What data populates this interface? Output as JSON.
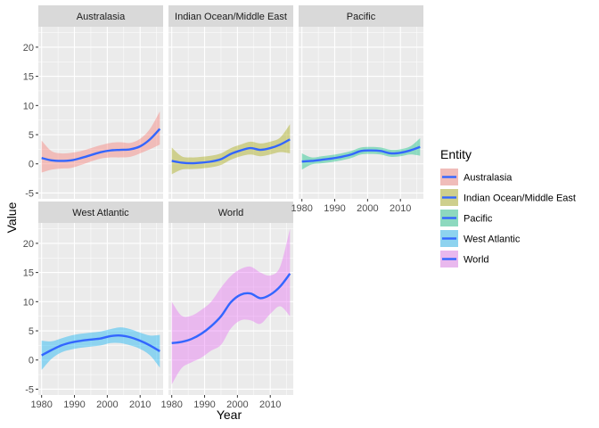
{
  "chart_data": {
    "type": "area",
    "xlabel": "Year",
    "ylabel": "Value",
    "xlim": [
      1979,
      2017
    ],
    "ylim": [
      -6,
      23.5
    ],
    "x_ticks": [
      1980,
      1990,
      2000,
      2010
    ],
    "y_ticks": [
      -5,
      0,
      5,
      10,
      15,
      20
    ],
    "grid": true,
    "legend": {
      "title": "Entity",
      "position": "right",
      "entries": [
        "Australasia",
        "Indian Ocean/Middle East",
        "Pacific",
        "West Atlantic",
        "World"
      ]
    },
    "line_color": "#3366ff",
    "series": [
      {
        "name": "Australasia",
        "fill": "#f8766d",
        "x": [
          1980,
          1983,
          1986,
          1989,
          1992,
          1995,
          1998,
          2001,
          2004,
          2007,
          2010,
          2013,
          2016
        ],
        "y": [
          1.0,
          0.6,
          0.5,
          0.6,
          1.0,
          1.5,
          2.0,
          2.3,
          2.4,
          2.5,
          3.0,
          4.2,
          6.0
        ],
        "upper": [
          4.0,
          2.2,
          1.8,
          1.9,
          2.2,
          2.7,
          3.2,
          3.6,
          3.7,
          3.6,
          4.3,
          6.0,
          9.0
        ],
        "lower": [
          -1.5,
          -1.0,
          -0.8,
          -0.7,
          -0.2,
          0.4,
          0.9,
          1.1,
          1.1,
          1.2,
          1.8,
          2.5,
          3.3
        ]
      },
      {
        "name": "Indian Ocean/Middle East",
        "fill": "#a3a500",
        "x": [
          1980,
          1983,
          1986,
          1989,
          1992,
          1995,
          1998,
          2001,
          2004,
          2007,
          2010,
          2013,
          2016
        ],
        "y": [
          0.5,
          0.2,
          0.1,
          0.2,
          0.4,
          0.8,
          1.7,
          2.3,
          2.7,
          2.4,
          2.7,
          3.3,
          4.2
        ],
        "upper": [
          2.8,
          1.3,
          1.1,
          1.2,
          1.4,
          1.8,
          2.7,
          3.3,
          3.8,
          3.5,
          3.8,
          4.5,
          6.8
        ],
        "lower": [
          -1.8,
          -1.0,
          -0.9,
          -0.8,
          -0.6,
          -0.2,
          0.7,
          1.3,
          1.6,
          1.3,
          1.6,
          2.0,
          1.8
        ]
      },
      {
        "name": "Pacific",
        "fill": "#00bf7d",
        "x": [
          1980,
          1983,
          1986,
          1989,
          1992,
          1995,
          1998,
          2001,
          2004,
          2007,
          2010,
          2013,
          2016
        ],
        "y": [
          0.4,
          0.5,
          0.7,
          0.9,
          1.2,
          1.6,
          2.2,
          2.3,
          2.2,
          1.8,
          1.9,
          2.3,
          2.9
        ],
        "upper": [
          1.8,
          1.1,
          1.3,
          1.5,
          1.8,
          2.2,
          2.8,
          2.9,
          2.8,
          2.4,
          2.5,
          3.0,
          4.4
        ],
        "lower": [
          -1.0,
          -0.1,
          0.1,
          0.3,
          0.6,
          1.0,
          1.6,
          1.7,
          1.6,
          1.2,
          1.3,
          1.6,
          1.4
        ]
      },
      {
        "name": "West Atlantic",
        "fill": "#00b0f6",
        "x": [
          1980,
          1983,
          1986,
          1989,
          1992,
          1995,
          1998,
          2001,
          2004,
          2007,
          2010,
          2013,
          2016
        ],
        "y": [
          0.8,
          1.7,
          2.5,
          3.0,
          3.3,
          3.5,
          3.7,
          4.1,
          4.2,
          3.9,
          3.3,
          2.5,
          1.5
        ],
        "upper": [
          3.3,
          3.2,
          3.7,
          4.2,
          4.5,
          4.7,
          4.9,
          5.3,
          5.6,
          5.3,
          4.7,
          4.2,
          4.3
        ],
        "lower": [
          -1.7,
          0.2,
          1.3,
          1.8,
          2.1,
          2.3,
          2.5,
          2.9,
          2.9,
          2.5,
          1.9,
          0.8,
          -1.3
        ]
      },
      {
        "name": "World",
        "fill": "#e76bf3",
        "x": [
          1980,
          1983,
          1986,
          1989,
          1992,
          1995,
          1998,
          2001,
          2004,
          2007,
          2010,
          2013,
          2016
        ],
        "y": [
          2.9,
          3.1,
          3.6,
          4.5,
          5.8,
          7.5,
          9.9,
          11.2,
          11.4,
          10.6,
          11.2,
          12.6,
          14.8
        ],
        "upper": [
          10.0,
          7.6,
          7.6,
          8.6,
          10.0,
          12.4,
          14.4,
          15.6,
          16.0,
          15.0,
          14.5,
          16.0,
          22.5
        ],
        "lower": [
          -4.2,
          -1.4,
          -0.4,
          0.4,
          1.6,
          2.6,
          5.4,
          6.8,
          6.8,
          6.2,
          7.9,
          9.2,
          7.5
        ]
      }
    ]
  }
}
